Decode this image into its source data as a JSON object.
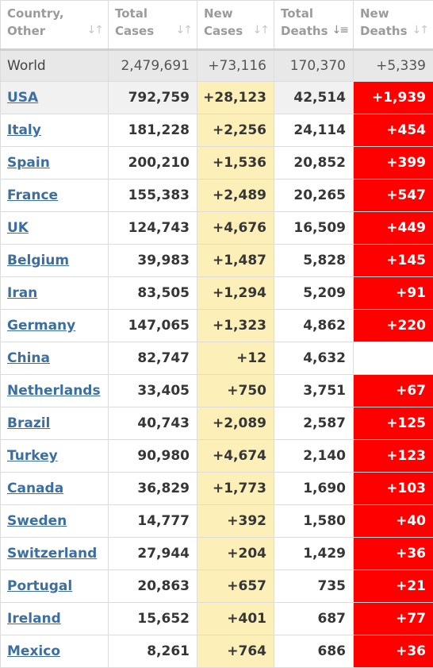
{
  "headers": [
    {
      "line1": "Country,",
      "line2": "Other",
      "sort_icon": "sort-both-icon"
    },
    {
      "line1": "Total",
      "line2": "Cases",
      "sort_icon": "sort-both-icon"
    },
    {
      "line1": "New",
      "line2": "Cases",
      "sort_icon": "sort-both-icon"
    },
    {
      "line1": "Total",
      "line2": "Deaths",
      "sort_icon": "sort-desc-icon"
    },
    {
      "line1": "New",
      "line2": "Deaths",
      "sort_icon": "sort-both-icon"
    }
  ],
  "world": {
    "name": "World",
    "total_cases": "2,479,691",
    "new_cases": "+73,116",
    "total_deaths": "170,370",
    "new_deaths": "+5,339"
  },
  "rows": [
    {
      "name": "USA",
      "total_cases": "792,759",
      "new_cases": "+28,123",
      "total_deaths": "42,514",
      "new_deaths": "+1,939"
    },
    {
      "name": "Italy",
      "total_cases": "181,228",
      "new_cases": "+2,256",
      "total_deaths": "24,114",
      "new_deaths": "+454"
    },
    {
      "name": "Spain",
      "total_cases": "200,210",
      "new_cases": "+1,536",
      "total_deaths": "20,852",
      "new_deaths": "+399"
    },
    {
      "name": "France",
      "total_cases": "155,383",
      "new_cases": "+2,489",
      "total_deaths": "20,265",
      "new_deaths": "+547"
    },
    {
      "name": "UK",
      "total_cases": "124,743",
      "new_cases": "+4,676",
      "total_deaths": "16,509",
      "new_deaths": "+449"
    },
    {
      "name": "Belgium",
      "total_cases": "39,983",
      "new_cases": "+1,487",
      "total_deaths": "5,828",
      "new_deaths": "+145"
    },
    {
      "name": "Iran",
      "total_cases": "83,505",
      "new_cases": "+1,294",
      "total_deaths": "5,209",
      "new_deaths": "+91"
    },
    {
      "name": "Germany",
      "total_cases": "147,065",
      "new_cases": "+1,323",
      "total_deaths": "4,862",
      "new_deaths": "+220"
    },
    {
      "name": "China",
      "total_cases": "82,747",
      "new_cases": "+12",
      "total_deaths": "4,632",
      "new_deaths": ""
    },
    {
      "name": "Netherlands",
      "total_cases": "33,405",
      "new_cases": "+750",
      "total_deaths": "3,751",
      "new_deaths": "+67"
    },
    {
      "name": "Brazil",
      "total_cases": "40,743",
      "new_cases": "+2,089",
      "total_deaths": "2,587",
      "new_deaths": "+125"
    },
    {
      "name": "Turkey",
      "total_cases": "90,980",
      "new_cases": "+4,674",
      "total_deaths": "2,140",
      "new_deaths": "+123"
    },
    {
      "name": "Canada",
      "total_cases": "36,829",
      "new_cases": "+1,773",
      "total_deaths": "1,690",
      "new_deaths": "+103"
    },
    {
      "name": "Sweden",
      "total_cases": "14,777",
      "new_cases": "+392",
      "total_deaths": "1,580",
      "new_deaths": "+40"
    },
    {
      "name": "Switzerland",
      "total_cases": "27,944",
      "new_cases": "+204",
      "total_deaths": "1,429",
      "new_deaths": "+36"
    },
    {
      "name": "Portugal",
      "total_cases": "20,863",
      "new_cases": "+657",
      "total_deaths": "735",
      "new_deaths": "+21"
    },
    {
      "name": "Ireland",
      "total_cases": "15,652",
      "new_cases": "+401",
      "total_deaths": "687",
      "new_deaths": "+77"
    },
    {
      "name": "Mexico",
      "total_cases": "8,261",
      "new_cases": "+764",
      "total_deaths": "686",
      "new_deaths": "+36"
    }
  ],
  "colors": {
    "new_cases_bg": "#fcf0b8",
    "new_deaths_bg": "#ff0000",
    "link": "#3b6fa1",
    "world_bg": "#e8e8e8"
  }
}
